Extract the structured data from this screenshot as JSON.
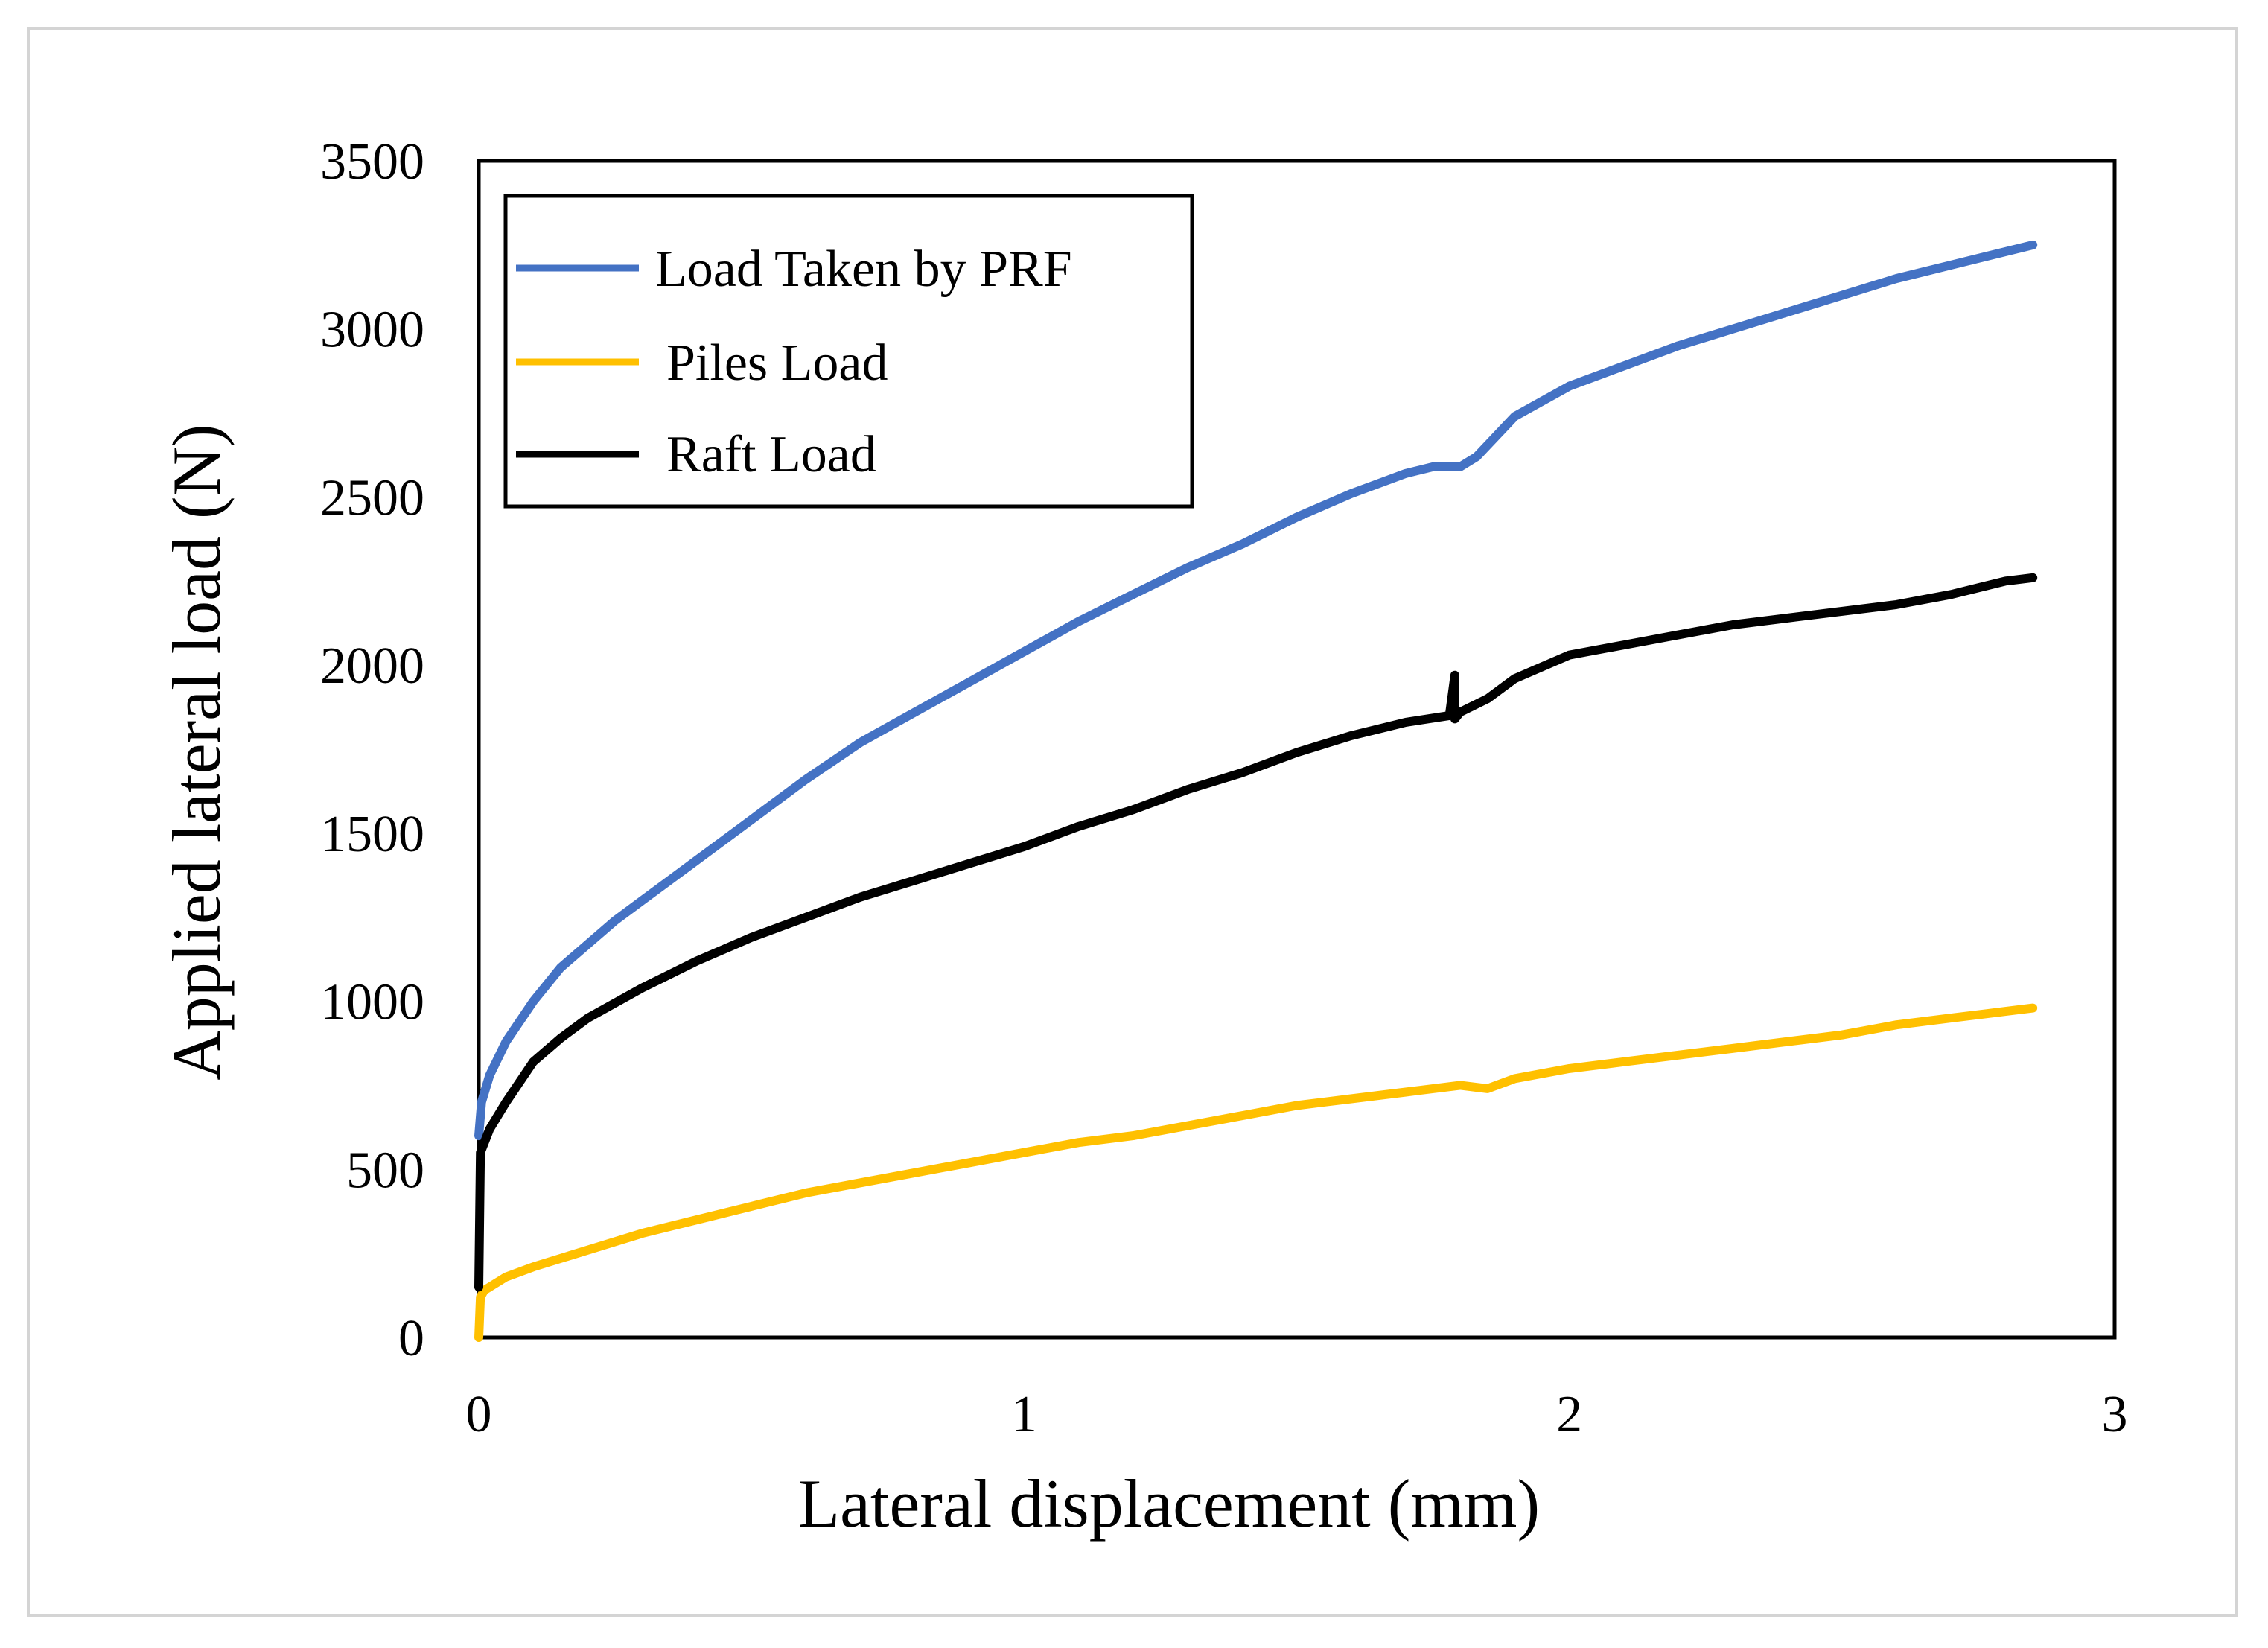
{
  "chart_data": {
    "type": "line",
    "title": "",
    "xlabel": "Lateral displacement (mm)",
    "ylabel": "Applied lateral load (N)",
    "xlim": [
      0,
      3
    ],
    "ylim": [
      0,
      3500
    ],
    "xticks": [
      "0",
      "1",
      "2",
      "3"
    ],
    "yticks": [
      "0",
      "500",
      "1000",
      "1500",
      "2000",
      "2500",
      "3000",
      "3500"
    ],
    "grid": false,
    "legend_position": "top-left",
    "series": [
      {
        "name": "Load Taken by PRF",
        "color": "#4472C4",
        "x": [
          0,
          0.005,
          0.02,
          0.05,
          0.1,
          0.15,
          0.2,
          0.25,
          0.3,
          0.4,
          0.5,
          0.6,
          0.7,
          0.8,
          0.9,
          1.0,
          1.1,
          1.2,
          1.3,
          1.4,
          1.5,
          1.6,
          1.7,
          1.75,
          1.8,
          1.83,
          1.9,
          2.0,
          2.1,
          2.2,
          2.3,
          2.4,
          2.5,
          2.6,
          2.7,
          2.8,
          2.85
        ],
        "y": [
          600,
          700,
          780,
          880,
          1000,
          1100,
          1170,
          1240,
          1300,
          1420,
          1540,
          1660,
          1770,
          1860,
          1950,
          2040,
          2130,
          2210,
          2290,
          2360,
          2440,
          2510,
          2570,
          2590,
          2590,
          2620,
          2740,
          2830,
          2890,
          2950,
          3000,
          3050,
          3100,
          3150,
          3190,
          3230,
          3250
        ]
      },
      {
        "name": "Piles Load",
        "color": "#FFC000",
        "x": [
          0,
          0.003,
          0.01,
          0.05,
          0.1,
          0.2,
          0.3,
          0.4,
          0.5,
          0.6,
          0.7,
          0.8,
          0.9,
          1.0,
          1.1,
          1.2,
          1.3,
          1.4,
          1.5,
          1.6,
          1.7,
          1.8,
          1.85,
          1.9,
          2.0,
          2.1,
          2.2,
          2.3,
          2.4,
          2.5,
          2.6,
          2.7,
          2.8,
          2.85
        ],
        "y": [
          0,
          120,
          140,
          180,
          210,
          260,
          310,
          350,
          390,
          430,
          460,
          490,
          520,
          550,
          580,
          600,
          630,
          660,
          690,
          710,
          730,
          750,
          740,
          770,
          800,
          820,
          840,
          860,
          880,
          900,
          930,
          950,
          970,
          980
        ]
      },
      {
        "name": "Raft Load",
        "color": "#000000",
        "x": [
          0,
          0.003,
          0.02,
          0.05,
          0.1,
          0.15,
          0.2,
          0.3,
          0.4,
          0.5,
          0.6,
          0.7,
          0.8,
          0.9,
          1.0,
          1.1,
          1.2,
          1.3,
          1.4,
          1.5,
          1.6,
          1.7,
          1.78,
          1.79,
          1.79,
          1.8,
          1.85,
          1.9,
          2.0,
          2.1,
          2.2,
          2.3,
          2.4,
          2.5,
          2.6,
          2.7,
          2.8,
          2.85
        ],
        "y": [
          150,
          550,
          620,
          700,
          820,
          890,
          950,
          1040,
          1120,
          1190,
          1250,
          1310,
          1360,
          1410,
          1460,
          1520,
          1570,
          1630,
          1680,
          1740,
          1790,
          1830,
          1850,
          1970,
          1840,
          1860,
          1900,
          1960,
          2030,
          2060,
          2090,
          2120,
          2140,
          2160,
          2180,
          2210,
          2250,
          2260
        ]
      }
    ]
  }
}
